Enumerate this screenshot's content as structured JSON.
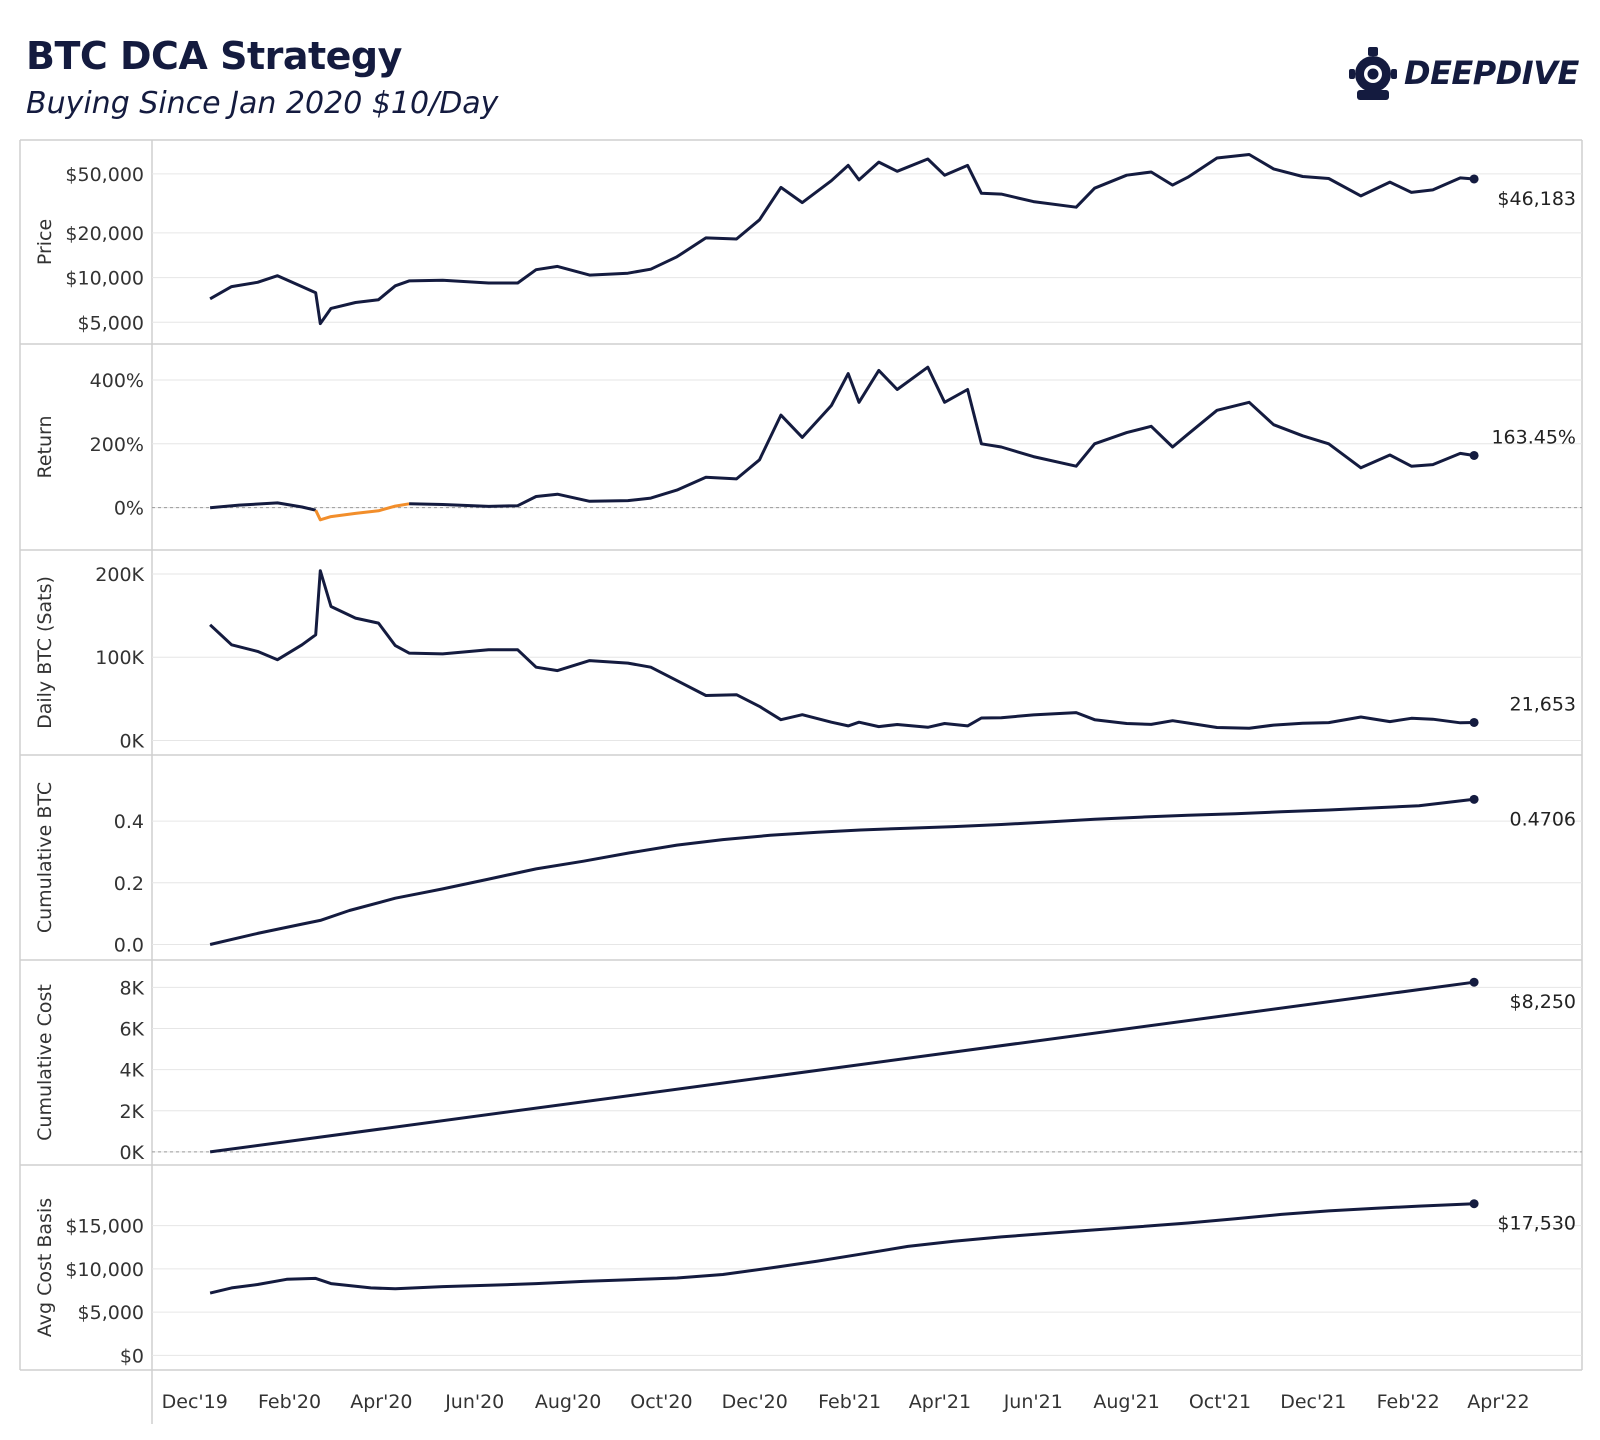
{
  "header": {
    "title": "BTC DCA Strategy",
    "subtitle": "Buying Since Jan 2020 $10/Day"
  },
  "logo": {
    "text": "DEEPDIVE",
    "icon": "diving-helmet-icon"
  },
  "colors": {
    "line": "#141b3f",
    "negative": "#f28e2b",
    "grid": "#e6e6e6",
    "border": "#cfcfcf",
    "zero": "#9a9a9a"
  },
  "chart_data": {
    "type": "line",
    "x_axis_ticks": [
      "Dec'19",
      "Feb'20",
      "Apr'20",
      "Jun'20",
      "Aug'20",
      "Oct'20",
      "Dec'20",
      "Feb'21",
      "Apr'21",
      "Jun'21",
      "Aug'21",
      "Oct'21",
      "Dec'21",
      "Feb'22",
      "Apr'22"
    ],
    "x_start": "2020-01-01",
    "x_end": "2022-04-06",
    "panels": [
      {
        "id": "price",
        "ylabel": "Price",
        "scale": "log",
        "ylim": [
          4300,
          62000
        ],
        "yticks": [
          {
            "v": 5000,
            "label": "$5,000"
          },
          {
            "v": 10000,
            "label": "$10,000"
          },
          {
            "v": 20000,
            "label": "$20,000"
          },
          {
            "v": 50000,
            "label": "$50,000"
          }
        ],
        "end_label": "$46,183",
        "points": [
          [
            "2020-01-01",
            7200
          ],
          [
            "2020-01-15",
            8700
          ],
          [
            "2020-02-01",
            9300
          ],
          [
            "2020-02-14",
            10300
          ],
          [
            "2020-03-01",
            8700
          ],
          [
            "2020-03-10",
            7900
          ],
          [
            "2020-03-13",
            4900
          ],
          [
            "2020-03-20",
            6200
          ],
          [
            "2020-04-05",
            6800
          ],
          [
            "2020-04-20",
            7100
          ],
          [
            "2020-05-01",
            8800
          ],
          [
            "2020-05-10",
            9500
          ],
          [
            "2020-06-01",
            9600
          ],
          [
            "2020-07-01",
            9200
          ],
          [
            "2020-07-20",
            9200
          ],
          [
            "2020-08-01",
            11300
          ],
          [
            "2020-08-15",
            11900
          ],
          [
            "2020-09-05",
            10400
          ],
          [
            "2020-09-30",
            10700
          ],
          [
            "2020-10-15",
            11400
          ],
          [
            "2020-11-01",
            13800
          ],
          [
            "2020-11-20",
            18500
          ],
          [
            "2020-12-10",
            18200
          ],
          [
            "2020-12-25",
            24500
          ],
          [
            "2021-01-08",
            40500
          ],
          [
            "2021-01-22",
            32000
          ],
          [
            "2021-02-10",
            45000
          ],
          [
            "2021-02-21",
            57000
          ],
          [
            "2021-02-28",
            45500
          ],
          [
            "2021-03-13",
            60000
          ],
          [
            "2021-03-25",
            52000
          ],
          [
            "2021-04-14",
            63000
          ],
          [
            "2021-04-25",
            49000
          ],
          [
            "2021-05-10",
            57000
          ],
          [
            "2021-05-19",
            37000
          ],
          [
            "2021-06-01",
            36500
          ],
          [
            "2021-06-22",
            32500
          ],
          [
            "2021-07-20",
            29800
          ],
          [
            "2021-08-01",
            40000
          ],
          [
            "2021-08-22",
            49000
          ],
          [
            "2021-09-07",
            51500
          ],
          [
            "2021-09-21",
            42000
          ],
          [
            "2021-10-01",
            47500
          ],
          [
            "2021-10-20",
            64000
          ],
          [
            "2021-11-10",
            67500
          ],
          [
            "2021-11-26",
            54000
          ],
          [
            "2021-12-15",
            48000
          ],
          [
            "2022-01-01",
            46500
          ],
          [
            "2022-01-22",
            35500
          ],
          [
            "2022-02-10",
            44000
          ],
          [
            "2022-02-24",
            37500
          ],
          [
            "2022-03-10",
            39000
          ],
          [
            "2022-03-28",
            47000
          ],
          [
            "2022-04-06",
            46183
          ]
        ]
      },
      {
        "id": "return",
        "ylabel": "Return",
        "scale": "linear",
        "ylim": [
          -70,
          450
        ],
        "yticks": [
          {
            "v": 0,
            "label": "0%"
          },
          {
            "v": 200,
            "label": "200%"
          },
          {
            "v": 400,
            "label": "400%"
          }
        ],
        "zero_line": true,
        "end_label": "163.45%",
        "points": [
          [
            "2020-01-01",
            0
          ],
          [
            "2020-01-20",
            8
          ],
          [
            "2020-02-14",
            15
          ],
          [
            "2020-03-01",
            2
          ],
          [
            "2020-03-10",
            -8
          ],
          [
            "2020-03-13",
            -38
          ],
          [
            "2020-03-20",
            -28
          ],
          [
            "2020-04-05",
            -18
          ],
          [
            "2020-04-20",
            -10
          ],
          [
            "2020-05-01",
            5
          ],
          [
            "2020-05-10",
            12
          ],
          [
            "2020-06-01",
            10
          ],
          [
            "2020-07-01",
            4
          ],
          [
            "2020-07-20",
            6
          ],
          [
            "2020-08-01",
            35
          ],
          [
            "2020-08-15",
            42
          ],
          [
            "2020-09-05",
            20
          ],
          [
            "2020-09-30",
            22
          ],
          [
            "2020-10-15",
            30
          ],
          [
            "2020-11-01",
            55
          ],
          [
            "2020-11-20",
            95
          ],
          [
            "2020-12-10",
            90
          ],
          [
            "2020-12-25",
            150
          ],
          [
            "2021-01-08",
            290
          ],
          [
            "2021-01-22",
            220
          ],
          [
            "2021-02-10",
            320
          ],
          [
            "2021-02-21",
            420
          ],
          [
            "2021-02-28",
            330
          ],
          [
            "2021-03-13",
            430
          ],
          [
            "2021-03-25",
            370
          ],
          [
            "2021-04-14",
            440
          ],
          [
            "2021-04-25",
            330
          ],
          [
            "2021-05-10",
            370
          ],
          [
            "2021-05-19",
            200
          ],
          [
            "2021-06-01",
            190
          ],
          [
            "2021-06-22",
            160
          ],
          [
            "2021-07-20",
            130
          ],
          [
            "2021-08-01",
            200
          ],
          [
            "2021-08-22",
            235
          ],
          [
            "2021-09-07",
            255
          ],
          [
            "2021-09-21",
            190
          ],
          [
            "2021-10-01",
            230
          ],
          [
            "2021-10-20",
            305
          ],
          [
            "2021-11-10",
            330
          ],
          [
            "2021-11-26",
            260
          ],
          [
            "2021-12-15",
            225
          ],
          [
            "2022-01-01",
            200
          ],
          [
            "2022-01-22",
            125
          ],
          [
            "2022-02-10",
            165
          ],
          [
            "2022-02-24",
            130
          ],
          [
            "2022-03-10",
            135
          ],
          [
            "2022-03-28",
            170
          ],
          [
            "2022-04-06",
            163.45
          ]
        ]
      },
      {
        "id": "daily",
        "ylabel": "Daily BTC (Sats)",
        "scale": "linear",
        "ylim": [
          -3000,
          212000
        ],
        "yticks": [
          {
            "v": 0,
            "label": "0K"
          },
          {
            "v": 100000,
            "label": "100K"
          },
          {
            "v": 200000,
            "label": "200K"
          }
        ],
        "end_label": "21,653",
        "points": [
          [
            "2020-01-01",
            139000
          ],
          [
            "2020-01-15",
            115000
          ],
          [
            "2020-02-01",
            107000
          ],
          [
            "2020-02-14",
            97000
          ],
          [
            "2020-03-01",
            115000
          ],
          [
            "2020-03-10",
            127000
          ],
          [
            "2020-03-13",
            204000
          ],
          [
            "2020-03-20",
            161000
          ],
          [
            "2020-04-05",
            147000
          ],
          [
            "2020-04-20",
            141000
          ],
          [
            "2020-05-01",
            114000
          ],
          [
            "2020-05-10",
            105000
          ],
          [
            "2020-06-01",
            104000
          ],
          [
            "2020-07-01",
            109000
          ],
          [
            "2020-07-20",
            109000
          ],
          [
            "2020-08-01",
            88000
          ],
          [
            "2020-08-15",
            84000
          ],
          [
            "2020-09-05",
            96000
          ],
          [
            "2020-09-30",
            93000
          ],
          [
            "2020-10-15",
            88000
          ],
          [
            "2020-11-01",
            72000
          ],
          [
            "2020-11-20",
            54000
          ],
          [
            "2020-12-10",
            55000
          ],
          [
            "2020-12-25",
            41000
          ],
          [
            "2021-01-08",
            25000
          ],
          [
            "2021-01-22",
            31000
          ],
          [
            "2021-02-10",
            22000
          ],
          [
            "2021-02-21",
            17500
          ],
          [
            "2021-02-28",
            22000
          ],
          [
            "2021-03-13",
            16700
          ],
          [
            "2021-03-25",
            19200
          ],
          [
            "2021-04-14",
            15900
          ],
          [
            "2021-04-25",
            20400
          ],
          [
            "2021-05-10",
            17500
          ],
          [
            "2021-05-19",
            27000
          ],
          [
            "2021-06-01",
            27400
          ],
          [
            "2021-06-22",
            30800
          ],
          [
            "2021-07-20",
            33500
          ],
          [
            "2021-08-01",
            25000
          ],
          [
            "2021-08-22",
            20400
          ],
          [
            "2021-09-07",
            19400
          ],
          [
            "2021-09-21",
            23800
          ],
          [
            "2021-10-01",
            21000
          ],
          [
            "2021-10-20",
            15600
          ],
          [
            "2021-11-10",
            14800
          ],
          [
            "2021-11-26",
            18500
          ],
          [
            "2021-12-15",
            20800
          ],
          [
            "2022-01-01",
            21500
          ],
          [
            "2022-01-22",
            28200
          ],
          [
            "2022-02-10",
            22700
          ],
          [
            "2022-02-24",
            26700
          ],
          [
            "2022-03-10",
            25600
          ],
          [
            "2022-03-28",
            21300
          ],
          [
            "2022-04-06",
            21653
          ]
        ]
      },
      {
        "id": "cumbtc",
        "ylabel": "Cumulative BTC",
        "scale": "linear",
        "ylim": [
          -0.005,
          0.53
        ],
        "yticks": [
          {
            "v": 0,
            "label": "0.0"
          },
          {
            "v": 0.2,
            "label": "0.2"
          },
          {
            "v": 0.4,
            "label": "0.4"
          }
        ],
        "end_label": "0.4706",
        "points": [
          [
            "2020-01-01",
            0
          ],
          [
            "2020-02-01",
            0.036
          ],
          [
            "2020-03-01",
            0.066
          ],
          [
            "2020-03-13",
            0.078
          ],
          [
            "2020-04-01",
            0.11
          ],
          [
            "2020-05-01",
            0.15
          ],
          [
            "2020-06-01",
            0.18
          ],
          [
            "2020-07-01",
            0.212
          ],
          [
            "2020-08-01",
            0.245
          ],
          [
            "2020-09-01",
            0.27
          ],
          [
            "2020-10-01",
            0.297
          ],
          [
            "2020-11-01",
            0.322
          ],
          [
            "2020-12-01",
            0.34
          ],
          [
            "2021-01-01",
            0.354
          ],
          [
            "2021-02-01",
            0.364
          ],
          [
            "2021-03-01",
            0.371
          ],
          [
            "2021-04-01",
            0.377
          ],
          [
            "2021-05-01",
            0.382
          ],
          [
            "2021-06-01",
            0.389
          ],
          [
            "2021-07-01",
            0.397
          ],
          [
            "2021-08-01",
            0.406
          ],
          [
            "2021-09-01",
            0.413
          ],
          [
            "2021-10-01",
            0.419
          ],
          [
            "2021-11-01",
            0.424
          ],
          [
            "2021-12-01",
            0.43
          ],
          [
            "2022-01-01",
            0.436
          ],
          [
            "2022-02-01",
            0.443
          ],
          [
            "2022-03-01",
            0.45
          ],
          [
            "2022-04-06",
            0.4706
          ]
        ]
      },
      {
        "id": "cumcost",
        "ylabel": "Cumulative Cost",
        "scale": "linear",
        "ylim": [
          -150,
          8650
        ],
        "yticks": [
          {
            "v": 0,
            "label": "0K"
          },
          {
            "v": 2000,
            "label": "2K"
          },
          {
            "v": 4000,
            "label": "4K"
          },
          {
            "v": 6000,
            "label": "6K"
          },
          {
            "v": 8000,
            "label": "8K"
          }
        ],
        "zero_line": true,
        "end_label": "$8,250",
        "points": [
          [
            "2020-01-01",
            0
          ],
          [
            "2022-04-06",
            8250
          ]
        ]
      },
      {
        "id": "avgcost",
        "ylabel": "Avg Cost Basis",
        "scale": "linear",
        "ylim": [
          -300,
          19000
        ],
        "yticks": [
          {
            "v": 0,
            "label": "$0"
          },
          {
            "v": 5000,
            "label": "$5,000"
          },
          {
            "v": 10000,
            "label": "$10,000"
          },
          {
            "v": 15000,
            "label": "$15,000"
          }
        ],
        "end_label": "$17,530",
        "points": [
          [
            "2020-01-01",
            7200
          ],
          [
            "2020-01-15",
            7800
          ],
          [
            "2020-02-01",
            8200
          ],
          [
            "2020-02-20",
            8800
          ],
          [
            "2020-03-10",
            8900
          ],
          [
            "2020-03-20",
            8300
          ],
          [
            "2020-04-15",
            7800
          ],
          [
            "2020-05-01",
            7700
          ],
          [
            "2020-06-01",
            7950
          ],
          [
            "2020-07-01",
            8100
          ],
          [
            "2020-08-01",
            8300
          ],
          [
            "2020-09-01",
            8550
          ],
          [
            "2020-10-01",
            8750
          ],
          [
            "2020-11-01",
            8950
          ],
          [
            "2020-12-01",
            9350
          ],
          [
            "2021-01-01",
            10100
          ],
          [
            "2021-02-01",
            10900
          ],
          [
            "2021-03-01",
            11700
          ],
          [
            "2021-04-01",
            12600
          ],
          [
            "2021-05-01",
            13200
          ],
          [
            "2021-06-01",
            13700
          ],
          [
            "2021-07-01",
            14100
          ],
          [
            "2021-08-01",
            14500
          ],
          [
            "2021-09-01",
            14900
          ],
          [
            "2021-10-01",
            15300
          ],
          [
            "2021-11-01",
            15800
          ],
          [
            "2021-12-01",
            16300
          ],
          [
            "2022-01-01",
            16700
          ],
          [
            "2022-02-01",
            17000
          ],
          [
            "2022-03-01",
            17250
          ],
          [
            "2022-04-06",
            17530
          ]
        ]
      }
    ]
  }
}
